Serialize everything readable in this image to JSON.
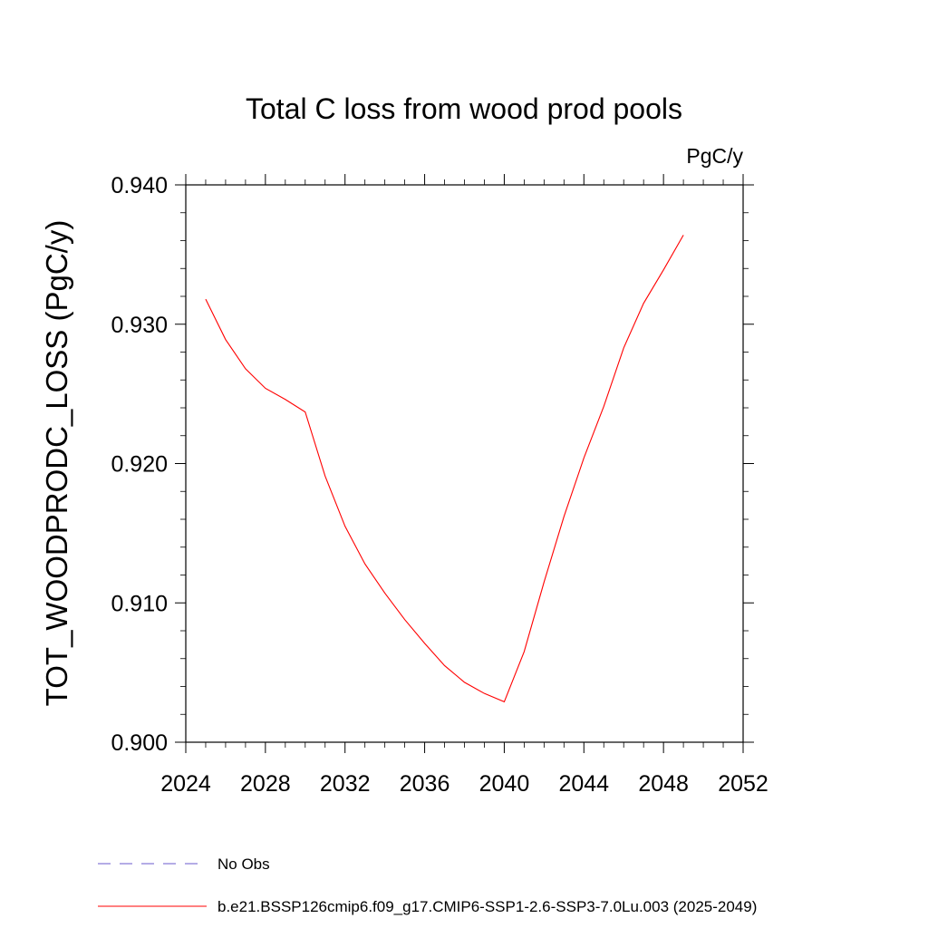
{
  "chart_data": {
    "type": "line",
    "title": "Total C loss from wood prod pools",
    "units_label": "PgC/y",
    "ylabel": "TOT_WOODPRODC_LOSS  (PgC/y)",
    "xlabel": "",
    "xlim": [
      2024,
      2052
    ],
    "ylim": [
      0.9,
      0.94
    ],
    "x_ticks": [
      "2024",
      "2028",
      "2032",
      "2036",
      "2040",
      "2044",
      "2048",
      "2052"
    ],
    "y_ticks": [
      "0.900",
      "0.910",
      "0.920",
      "0.930",
      "0.940"
    ],
    "grid": false,
    "legend_position": "bottom-left",
    "series": [
      {
        "name": "b.e21.BSSP126cmip6.f09_g17.CMIP6-SSP1-2.6-SSP3-7.0Lu.003 (2025-2049)",
        "color": "#ff0000",
        "style": "solid",
        "x": [
          2025,
          2026,
          2027,
          2028,
          2029,
          2030,
          2031,
          2032,
          2033,
          2034,
          2035,
          2036,
          2037,
          2038,
          2039,
          2040,
          2041,
          2042,
          2043,
          2044,
          2045,
          2046,
          2047,
          2048,
          2049
        ],
        "y": [
          0.9318,
          0.9289,
          0.9268,
          0.9254,
          0.9246,
          0.9237,
          0.9191,
          0.9155,
          0.9128,
          0.9107,
          0.9088,
          0.9071,
          0.9055,
          0.9043,
          0.9035,
          0.9029,
          0.9065,
          0.9115,
          0.9162,
          0.9204,
          0.9241,
          0.9283,
          0.9315,
          0.9339,
          0.9364
        ]
      }
    ],
    "legend": [
      {
        "label": "No Obs",
        "color": "#6a5acd",
        "style": "dashed"
      },
      {
        "label": "b.e21.BSSP126cmip6.f09_g17.CMIP6-SSP1-2.6-SSP3-7.0Lu.003 (2025-2049)",
        "color": "#ff0000",
        "style": "solid"
      }
    ]
  }
}
